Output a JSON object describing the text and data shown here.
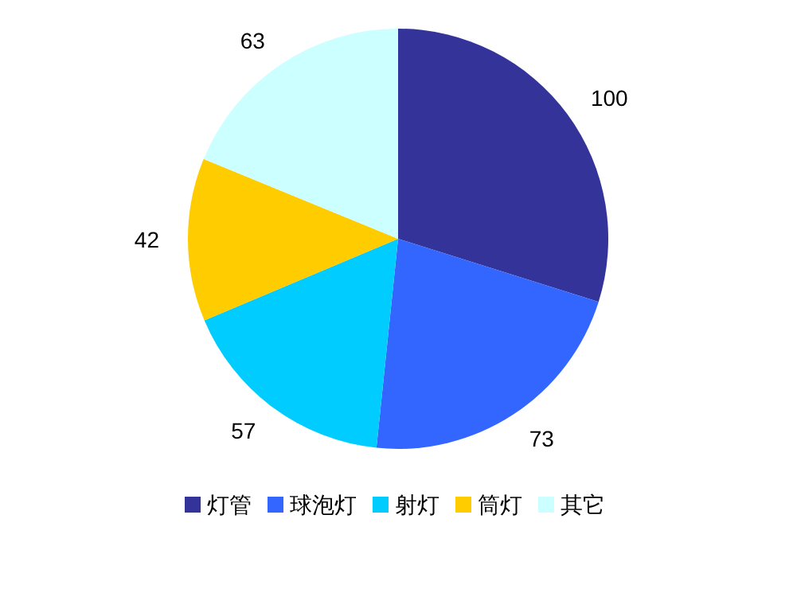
{
  "chart_data": {
    "type": "pie",
    "categories": [
      "灯管",
      "球泡灯",
      "射灯",
      "筒灯",
      "其它"
    ],
    "values": [
      100,
      73,
      57,
      42,
      63
    ],
    "colors": [
      "#333399",
      "#3366ff",
      "#00ccff",
      "#ffcc00",
      "#ccffff"
    ],
    "data_labels": true,
    "legend": "bottom"
  }
}
